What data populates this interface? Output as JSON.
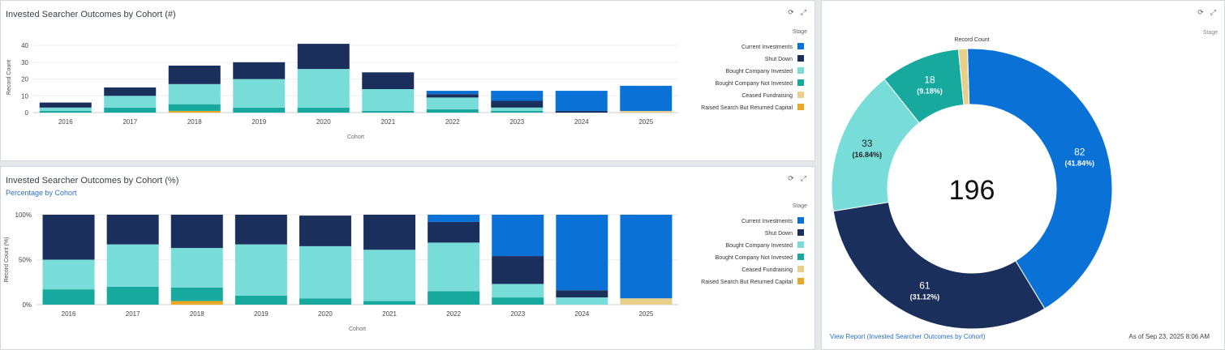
{
  "colors": {
    "current": "#0a72d6",
    "shut": "#1a2f5b",
    "bought": "#78ddd8",
    "notinv": "#17a99d",
    "ceased": "#e8d08a",
    "raised": "#e9a825"
  },
  "panel1": {
    "title": "Invested Searcher Outcomes by Cohort (#)",
    "refresh_icon": "refresh-icon",
    "expand_icon": "expand-icon"
  },
  "panel2": {
    "title": "Invested Searcher Outcomes by Cohort (%)",
    "subtitle": "Percentage by Cohort",
    "refresh_icon": "refresh-icon",
    "expand_icon": "expand-icon"
  },
  "panel3": {
    "title": "Record Count",
    "legend_title": "Stage",
    "refresh_icon": "refresh-icon",
    "expand_icon": "expand-icon",
    "footer_link": "View Report (Invested Searcher Outcomes by Cohort)",
    "footer_date": "As of Sep 23, 2025 8:06 AM"
  },
  "chart_data": [
    {
      "type": "bar",
      "stacked": true,
      "title": "Invested Searcher Outcomes by Cohort (#)",
      "xlabel": "Cohort",
      "ylabel": "Record Count",
      "ylim": [
        0,
        42
      ],
      "yticks": [
        "0",
        "10",
        "20",
        "30",
        "40"
      ],
      "ytick_values": [
        0,
        10,
        20,
        30,
        40
      ],
      "legend_title": "Stage",
      "legend_position": "right",
      "categories": [
        "2016",
        "2017",
        "2018",
        "2019",
        "2020",
        "2021",
        "2022",
        "2023",
        "2024",
        "2025"
      ],
      "series": [
        {
          "name": "Raised Search But Returned Capital",
          "key": "raised",
          "values": [
            0,
            0,
            1,
            0,
            0,
            0,
            0,
            0,
            0,
            0
          ]
        },
        {
          "name": "Ceased Fundraising",
          "key": "ceased",
          "values": [
            0,
            0,
            0,
            0,
            0,
            0,
            0,
            0,
            0,
            1
          ]
        },
        {
          "name": "Bought Company Not Invested",
          "key": "notinv",
          "values": [
            1,
            3,
            4,
            3,
            3,
            1,
            2,
            1,
            0,
            0
          ]
        },
        {
          "name": "Bought Company Invested",
          "key": "bought",
          "values": [
            2,
            7,
            12,
            17,
            23,
            13,
            7,
            2,
            0,
            0
          ]
        },
        {
          "name": "Shut Down",
          "key": "shut",
          "values": [
            3,
            5,
            11,
            10,
            15,
            10,
            2,
            4,
            1,
            0
          ]
        },
        {
          "name": "Current Investments",
          "key": "current",
          "values": [
            0,
            0,
            0,
            0,
            0,
            0,
            2,
            6,
            12,
            15
          ]
        }
      ]
    },
    {
      "type": "bar",
      "stacked": true,
      "percent": true,
      "title": "Invested Searcher Outcomes by Cohort (%)",
      "subtitle": "Percentage by Cohort",
      "xlabel": "Cohort",
      "ylabel": "Record Count (%)",
      "ylim": [
        0,
        100
      ],
      "yticks": [
        "0%",
        "50%",
        "100%"
      ],
      "ytick_values": [
        0,
        50,
        100
      ],
      "legend_title": "Stage",
      "legend_position": "right",
      "categories": [
        "2016",
        "2017",
        "2018",
        "2019",
        "2020",
        "2021",
        "2022",
        "2023",
        "2024",
        "2025"
      ],
      "series": [
        {
          "name": "Raised Search But Returned Capital",
          "key": "raised",
          "values": [
            0,
            0,
            4,
            0,
            0,
            0,
            0,
            0,
            0,
            0
          ]
        },
        {
          "name": "Ceased Fundraising",
          "key": "ceased",
          "values": [
            0,
            0,
            0,
            0,
            0,
            0,
            0,
            0,
            0,
            7
          ]
        },
        {
          "name": "Bought Company Not Invested",
          "key": "notinv",
          "values": [
            17,
            20,
            15,
            10,
            7,
            4,
            15,
            8,
            0,
            0
          ]
        },
        {
          "name": "Bought Company Invested",
          "key": "bought",
          "values": [
            33,
            47,
            44,
            57,
            58,
            57,
            54,
            15,
            8,
            0
          ]
        },
        {
          "name": "Shut Down",
          "key": "shut",
          "values": [
            50,
            33,
            37,
            33,
            34,
            39,
            23,
            31,
            8,
            0
          ]
        },
        {
          "name": "Current Investments",
          "key": "current",
          "values": [
            0,
            0,
            0,
            0,
            0,
            0,
            8,
            46,
            84,
            93
          ]
        }
      ]
    },
    {
      "type": "pie",
      "donut": true,
      "title": "Record Count",
      "legend_title": "Stage",
      "total": "196",
      "slices": [
        {
          "name": "Current Investments",
          "key": "current",
          "value": 82,
          "label": "82",
          "pct": "(41.84%)"
        },
        {
          "name": "Shut Down",
          "key": "shut",
          "value": 61,
          "label": "61",
          "pct": "(31.12%)"
        },
        {
          "name": "Bought Company Invested",
          "key": "bought",
          "value": 33,
          "label": "33",
          "pct": "(16.84%)"
        },
        {
          "name": "Bought Company Not Invested",
          "key": "notinv",
          "value": 18,
          "label": "18",
          "pct": "(9.18%)"
        },
        {
          "name": "Ceased Fundraising",
          "key": "ceased",
          "value": 2,
          "label": "",
          "pct": ""
        }
      ]
    }
  ]
}
